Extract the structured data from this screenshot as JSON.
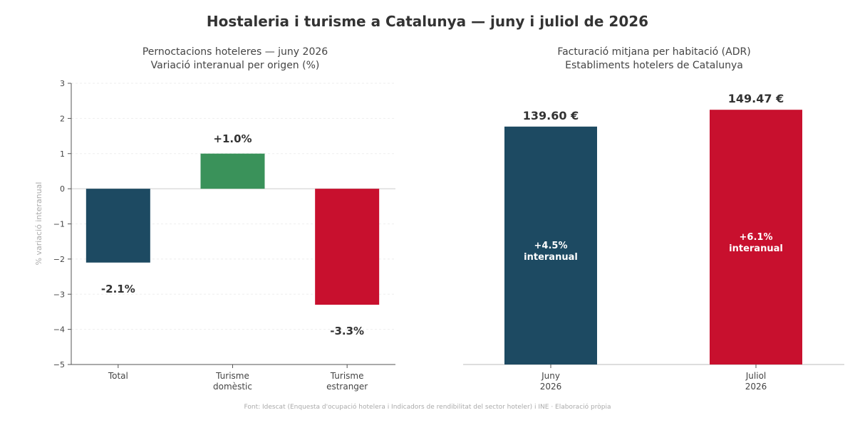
{
  "title": "Hostaleria i turisme a Catalunya — juny i juliol de 2026",
  "source": "Font: Idescat (Enquesta d'ocupació hotelera i Indicadors de rendibilitat del sector hoteler) i INE  ·  Elaboració pròpia",
  "colors": {
    "navy": "#1d4a62",
    "green": "#3a925a",
    "red": "#c8102e",
    "text": "#333333",
    "muted": "#999999",
    "grid": "#eeeeee"
  },
  "chart_data": [
    {
      "type": "bar",
      "title": "Pernoctacions hoteleres — juny 2026",
      "subtitle": "Variació interanual per origen (%)",
      "ylabel": "% variació interanual",
      "xlabel": "",
      "categories": [
        "Total",
        "Turisme\ndomèstic",
        "Turisme\nestranger"
      ],
      "values": [
        -2.1,
        1.0,
        -3.3
      ],
      "labels": [
        "-2.1%",
        "+1.0%",
        "-3.3%"
      ],
      "colors": [
        "#1d4a62",
        "#3a925a",
        "#c8102e"
      ],
      "ylim": [
        -5,
        3
      ],
      "yticks": [
        3,
        2,
        1,
        0,
        -1,
        -2,
        -3,
        -4,
        -5
      ],
      "ytick_labels": [
        "3",
        "2",
        "1",
        "0",
        "−1",
        "−2",
        "−3",
        "−4",
        "−5"
      ],
      "grid": true
    },
    {
      "type": "bar",
      "title": "Facturació mitjana per habitació (ADR)",
      "subtitle": "Establiments hotelers de Catalunya",
      "xlabel": "",
      "ylabel": "",
      "categories": [
        "Juny\n2026",
        "Juliol\n2026"
      ],
      "values": [
        139.6,
        149.47
      ],
      "value_labels": [
        "139.60 €",
        "149.47 €"
      ],
      "inner_labels": [
        "+4.5%\ninteranual",
        "+6.1%\ninteranual"
      ],
      "colors": [
        "#1d4a62",
        "#c8102e"
      ],
      "ylim": [
        0,
        165
      ],
      "grid": false
    }
  ]
}
